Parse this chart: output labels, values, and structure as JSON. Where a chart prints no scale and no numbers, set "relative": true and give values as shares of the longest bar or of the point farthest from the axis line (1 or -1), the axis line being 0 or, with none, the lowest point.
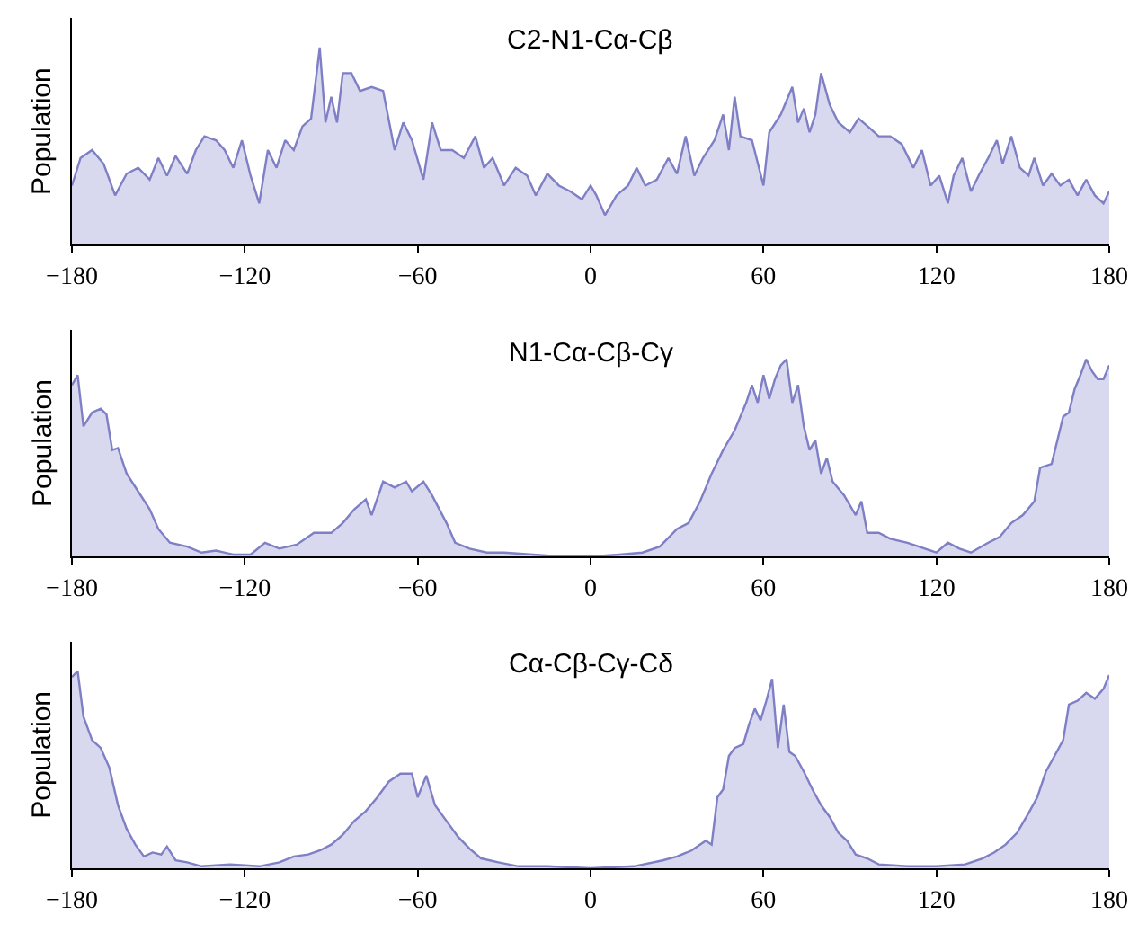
{
  "chart_data": [
    {
      "type": "area",
      "title": "C2-N1-Cα-Cβ",
      "ylabel": "Population",
      "relative": true,
      "xlim": [
        -180,
        180
      ],
      "xticks": [
        -180,
        -120,
        -60,
        0,
        60,
        120,
        180
      ],
      "series": [
        {
          "color": "#7f7fc6",
          "x": [
            -180,
            -177,
            -173,
            -169,
            -165,
            -161,
            -157,
            -153,
            -150,
            -147,
            -144,
            -140,
            -137,
            -134,
            -130,
            -127,
            -124,
            -121,
            -118,
            -115,
            -112,
            -109,
            -106,
            -103,
            -100,
            -97,
            -94,
            -92,
            -90,
            -88,
            -86,
            -83,
            -80,
            -76,
            -72,
            -68,
            -65,
            -62,
            -58,
            -55,
            -52,
            -48,
            -44,
            -40,
            -37,
            -34,
            -30,
            -26,
            -22,
            -19,
            -15,
            -11,
            -7,
            -3,
            0,
            2,
            5,
            9,
            13,
            16,
            19,
            23,
            27,
            30,
            33,
            36,
            39,
            43,
            46,
            48,
            50,
            52,
            56,
            60,
            62,
            66,
            70,
            72,
            74,
            76,
            78,
            80,
            83,
            86,
            90,
            93,
            97,
            100,
            104,
            108,
            112,
            115,
            118,
            121,
            124,
            126,
            129,
            132,
            135,
            138,
            141,
            143,
            146,
            149,
            152,
            154,
            157,
            160,
            163,
            166,
            169,
            172,
            175,
            178,
            180
          ],
          "values": [
            0.3,
            0.44,
            0.48,
            0.41,
            0.25,
            0.36,
            0.39,
            0.33,
            0.44,
            0.35,
            0.45,
            0.36,
            0.48,
            0.55,
            0.53,
            0.48,
            0.39,
            0.53,
            0.35,
            0.21,
            0.48,
            0.39,
            0.53,
            0.48,
            0.6,
            0.64,
            1.0,
            0.62,
            0.75,
            0.62,
            0.87,
            0.87,
            0.78,
            0.8,
            0.78,
            0.48,
            0.62,
            0.53,
            0.33,
            0.62,
            0.48,
            0.48,
            0.44,
            0.55,
            0.39,
            0.44,
            0.3,
            0.39,
            0.35,
            0.25,
            0.36,
            0.3,
            0.27,
            0.23,
            0.3,
            0.25,
            0.15,
            0.25,
            0.3,
            0.39,
            0.3,
            0.33,
            0.44,
            0.36,
            0.55,
            0.35,
            0.44,
            0.53,
            0.66,
            0.48,
            0.75,
            0.55,
            0.53,
            0.3,
            0.57,
            0.66,
            0.8,
            0.62,
            0.69,
            0.57,
            0.66,
            0.87,
            0.71,
            0.62,
            0.57,
            0.64,
            0.59,
            0.55,
            0.55,
            0.51,
            0.39,
            0.48,
            0.3,
            0.35,
            0.21,
            0.35,
            0.44,
            0.27,
            0.36,
            0.44,
            0.53,
            0.41,
            0.55,
            0.39,
            0.35,
            0.44,
            0.3,
            0.36,
            0.3,
            0.33,
            0.25,
            0.33,
            0.25,
            0.21,
            0.27
          ]
        }
      ]
    },
    {
      "type": "area",
      "title": "N1-Cα-Cβ-Cγ",
      "ylabel": "Population",
      "relative": true,
      "xlim": [
        -180,
        180
      ],
      "xticks": [
        -180,
        -120,
        -60,
        0,
        60,
        120,
        180
      ],
      "series": [
        {
          "color": "#7f7fc6",
          "x": [
            -180,
            -178,
            -176,
            -173,
            -170,
            -168,
            -166,
            -164,
            -161,
            -157,
            -153,
            -150,
            -146,
            -140,
            -135,
            -130,
            -124,
            -118,
            -113,
            -108,
            -102,
            -96,
            -90,
            -86,
            -82,
            -78,
            -76,
            -72,
            -68,
            -64,
            -62,
            -58,
            -55,
            -50,
            -47,
            -42,
            -36,
            -30,
            -20,
            -10,
            0,
            10,
            18,
            24,
            30,
            34,
            38,
            42,
            46,
            50,
            54,
            56,
            58,
            60,
            62,
            64,
            66,
            68,
            70,
            72,
            74,
            76,
            78,
            80,
            82,
            84,
            88,
            92,
            94,
            96,
            100,
            104,
            110,
            116,
            120,
            124,
            128,
            132,
            138,
            142,
            146,
            150,
            154,
            156,
            160,
            162,
            164,
            166,
            168,
            170,
            172,
            174,
            176,
            178,
            180
          ],
          "values": [
            0.87,
            0.92,
            0.66,
            0.73,
            0.75,
            0.72,
            0.54,
            0.55,
            0.42,
            0.33,
            0.24,
            0.14,
            0.07,
            0.05,
            0.02,
            0.03,
            0.01,
            0.01,
            0.07,
            0.04,
            0.06,
            0.12,
            0.12,
            0.17,
            0.24,
            0.29,
            0.21,
            0.38,
            0.35,
            0.38,
            0.33,
            0.38,
            0.31,
            0.17,
            0.07,
            0.04,
            0.02,
            0.02,
            0.01,
            0,
            0,
            0.01,
            0.02,
            0.05,
            0.14,
            0.17,
            0.28,
            0.42,
            0.54,
            0.64,
            0.78,
            0.87,
            0.78,
            0.92,
            0.8,
            0.9,
            0.97,
            1.0,
            0.78,
            0.87,
            0.66,
            0.54,
            0.59,
            0.42,
            0.5,
            0.38,
            0.31,
            0.21,
            0.28,
            0.12,
            0.12,
            0.09,
            0.07,
            0.04,
            0.02,
            0.07,
            0.04,
            0.02,
            0.07,
            0.1,
            0.17,
            0.21,
            0.28,
            0.45,
            0.47,
            0.59,
            0.71,
            0.73,
            0.85,
            0.92,
            1.0,
            0.94,
            0.9,
            0.9,
            0.97
          ]
        }
      ]
    },
    {
      "type": "area",
      "title": "Cα-Cβ-Cγ-Cδ",
      "ylabel": "Population",
      "relative": true,
      "xlim": [
        -180,
        180
      ],
      "xticks": [
        -180,
        -120,
        -60,
        0,
        60,
        120,
        180
      ],
      "series": [
        {
          "color": "#7f7fc6",
          "x": [
            -180,
            -178,
            -176,
            -173,
            -170,
            -167,
            -164,
            -161,
            -158,
            -155,
            -152,
            -149,
            -147,
            -144,
            -140,
            -135,
            -125,
            -115,
            -108,
            -103,
            -98,
            -94,
            -90,
            -86,
            -82,
            -78,
            -74,
            -70,
            -66,
            -62,
            -60,
            -57,
            -54,
            -50,
            -46,
            -42,
            -38,
            -32,
            -25,
            -15,
            0,
            15,
            25,
            30,
            35,
            40,
            42,
            44,
            46,
            48,
            50,
            53,
            55,
            57,
            59,
            61,
            63,
            65,
            67,
            69,
            71,
            74,
            77,
            80,
            83,
            86,
            89,
            92,
            96,
            100,
            110,
            120,
            130,
            136,
            140,
            144,
            148,
            152,
            155,
            158,
            161,
            164,
            166,
            169,
            172,
            175,
            178,
            180
          ],
          "values": [
            0.97,
            1.0,
            0.77,
            0.65,
            0.61,
            0.51,
            0.32,
            0.2,
            0.12,
            0.06,
            0.08,
            0.07,
            0.11,
            0.04,
            0.03,
            0.01,
            0.02,
            0.01,
            0.03,
            0.06,
            0.07,
            0.09,
            0.12,
            0.17,
            0.24,
            0.29,
            0.36,
            0.44,
            0.48,
            0.48,
            0.36,
            0.47,
            0.32,
            0.24,
            0.16,
            0.1,
            0.05,
            0.03,
            0.01,
            0.01,
            0,
            0.01,
            0.04,
            0.06,
            0.09,
            0.14,
            0.12,
            0.36,
            0.4,
            0.57,
            0.61,
            0.63,
            0.73,
            0.81,
            0.75,
            0.85,
            0.96,
            0.61,
            0.83,
            0.59,
            0.57,
            0.49,
            0.4,
            0.32,
            0.26,
            0.18,
            0.14,
            0.07,
            0.05,
            0.02,
            0.01,
            0.01,
            0.02,
            0.05,
            0.08,
            0.12,
            0.18,
            0.28,
            0.36,
            0.49,
            0.57,
            0.65,
            0.83,
            0.85,
            0.89,
            0.86,
            0.91,
            0.98
          ]
        }
      ]
    }
  ]
}
